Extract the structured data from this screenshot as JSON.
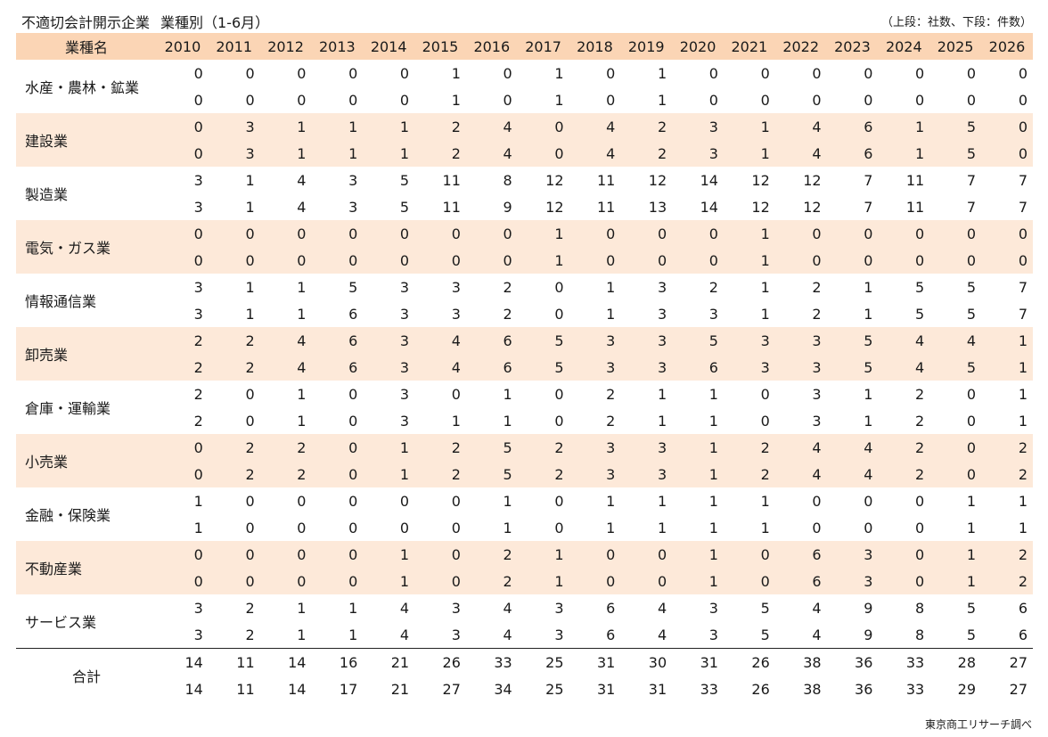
{
  "title": "不適切会計開示企業",
  "subtitle": "業種別（1-6月）",
  "note": "（上段：社数、下段：件数）",
  "source": "東京商工リサーチ調べ",
  "header": {
    "name_label": "業種名",
    "years": [
      "2010",
      "2011",
      "2012",
      "2013",
      "2014",
      "2015",
      "2016",
      "2017",
      "2018",
      "2019",
      "2020",
      "2021",
      "2022",
      "2023",
      "2024",
      "2025",
      "2026"
    ]
  },
  "rows": [
    {
      "name": "水産・農林・鉱業",
      "companies": [
        0,
        0,
        0,
        0,
        0,
        1,
        0,
        1,
        0,
        1,
        0,
        0,
        0,
        0,
        0,
        0,
        0
      ],
      "cases": [
        0,
        0,
        0,
        0,
        0,
        1,
        0,
        1,
        0,
        1,
        0,
        0,
        0,
        0,
        0,
        0,
        0
      ]
    },
    {
      "name": "建設業",
      "companies": [
        0,
        3,
        1,
        1,
        1,
        2,
        4,
        0,
        4,
        2,
        3,
        1,
        4,
        6,
        1,
        5,
        0
      ],
      "cases": [
        0,
        3,
        1,
        1,
        1,
        2,
        4,
        0,
        4,
        2,
        3,
        1,
        4,
        6,
        1,
        5,
        0
      ]
    },
    {
      "name": "製造業",
      "companies": [
        3,
        1,
        4,
        3,
        5,
        11,
        8,
        12,
        11,
        12,
        14,
        12,
        12,
        7,
        11,
        7,
        7
      ],
      "cases": [
        3,
        1,
        4,
        3,
        5,
        11,
        9,
        12,
        11,
        13,
        14,
        12,
        12,
        7,
        11,
        7,
        7
      ]
    },
    {
      "name": "電気・ガス業",
      "companies": [
        0,
        0,
        0,
        0,
        0,
        0,
        0,
        1,
        0,
        0,
        0,
        1,
        0,
        0,
        0,
        0,
        0
      ],
      "cases": [
        0,
        0,
        0,
        0,
        0,
        0,
        0,
        1,
        0,
        0,
        0,
        1,
        0,
        0,
        0,
        0,
        0
      ]
    },
    {
      "name": "情報通信業",
      "companies": [
        3,
        1,
        1,
        5,
        3,
        3,
        2,
        0,
        1,
        3,
        2,
        1,
        2,
        1,
        5,
        5,
        7
      ],
      "cases": [
        3,
        1,
        1,
        6,
        3,
        3,
        2,
        0,
        1,
        3,
        3,
        1,
        2,
        1,
        5,
        5,
        7
      ]
    },
    {
      "name": "卸売業",
      "companies": [
        2,
        2,
        4,
        6,
        3,
        4,
        6,
        5,
        3,
        3,
        5,
        3,
        3,
        5,
        4,
        4,
        1
      ],
      "cases": [
        2,
        2,
        4,
        6,
        3,
        4,
        6,
        5,
        3,
        3,
        6,
        3,
        3,
        5,
        4,
        5,
        1
      ]
    },
    {
      "name": "倉庫・運輸業",
      "companies": [
        2,
        0,
        1,
        0,
        3,
        0,
        1,
        0,
        2,
        1,
        1,
        0,
        3,
        1,
        2,
        0,
        1
      ],
      "cases": [
        2,
        0,
        1,
        0,
        3,
        1,
        1,
        0,
        2,
        1,
        1,
        0,
        3,
        1,
        2,
        0,
        1
      ]
    },
    {
      "name": "小売業",
      "companies": [
        0,
        2,
        2,
        0,
        1,
        2,
        5,
        2,
        3,
        3,
        1,
        2,
        4,
        4,
        2,
        0,
        2
      ],
      "cases": [
        0,
        2,
        2,
        0,
        1,
        2,
        5,
        2,
        3,
        3,
        1,
        2,
        4,
        4,
        2,
        0,
        2
      ]
    },
    {
      "name": "金融・保険業",
      "companies": [
        1,
        0,
        0,
        0,
        0,
        0,
        1,
        0,
        1,
        1,
        1,
        1,
        0,
        0,
        0,
        1,
        1
      ],
      "cases": [
        1,
        0,
        0,
        0,
        0,
        0,
        1,
        0,
        1,
        1,
        1,
        1,
        0,
        0,
        0,
        1,
        1
      ]
    },
    {
      "name": "不動産業",
      "companies": [
        0,
        0,
        0,
        0,
        1,
        0,
        2,
        1,
        0,
        0,
        1,
        0,
        6,
        3,
        0,
        1,
        2
      ],
      "cases": [
        0,
        0,
        0,
        0,
        1,
        0,
        2,
        1,
        0,
        0,
        1,
        0,
        6,
        3,
        0,
        1,
        2
      ]
    },
    {
      "name": "サービス業",
      "companies": [
        3,
        2,
        1,
        1,
        4,
        3,
        4,
        3,
        6,
        4,
        3,
        5,
        4,
        9,
        8,
        5,
        6
      ],
      "cases": [
        3,
        2,
        1,
        1,
        4,
        3,
        4,
        3,
        6,
        4,
        3,
        5,
        4,
        9,
        8,
        5,
        6
      ]
    }
  ],
  "total": {
    "name": "合計",
    "companies": [
      14,
      11,
      14,
      16,
      21,
      26,
      33,
      25,
      31,
      30,
      31,
      26,
      38,
      36,
      33,
      28,
      27
    ],
    "cases": [
      14,
      11,
      14,
      17,
      21,
      27,
      34,
      25,
      31,
      31,
      33,
      26,
      38,
      36,
      33,
      29,
      27
    ]
  },
  "colors": {
    "header_bg": "#fbd5b5",
    "shade_bg": "#fde9d9"
  }
}
